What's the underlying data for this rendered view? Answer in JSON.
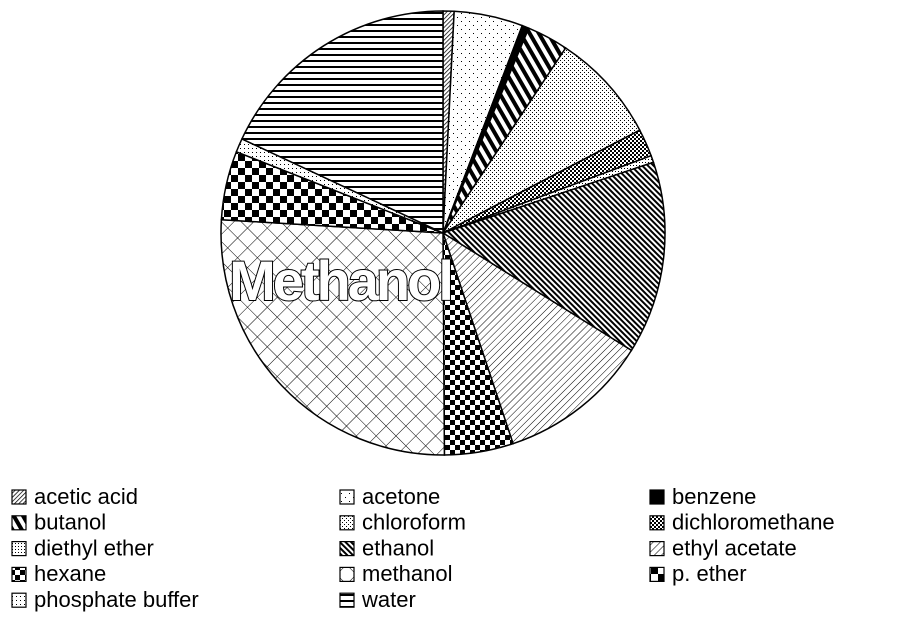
{
  "chart_data": {
    "type": "pie",
    "annotation": "Methanol",
    "categories": [
      "acetic acid",
      "acetone",
      "benzene",
      "butanol",
      "chloroform",
      "dichloromethane",
      "diethyl ether",
      "ethanol",
      "ethyl acetate",
      "hexane",
      "methanol",
      "p. ether",
      "phosphate buffer",
      "water"
    ],
    "values": [
      0.8,
      5,
      0.5,
      3,
      8,
      2,
      0.5,
      14,
      11,
      5,
      26,
      5,
      1,
      18
    ],
    "patterns": [
      "diag-dense",
      "dots-sparse",
      "solid",
      "back-wide",
      "dots-fine",
      "checker-small",
      "dots-med",
      "back-dense",
      "fwd-med",
      "checker-med",
      "lattice",
      "checker-large",
      "dots-grid",
      "horiz"
    ],
    "start_angle": 0,
    "direction": "clockwise",
    "legend": "bottom"
  }
}
